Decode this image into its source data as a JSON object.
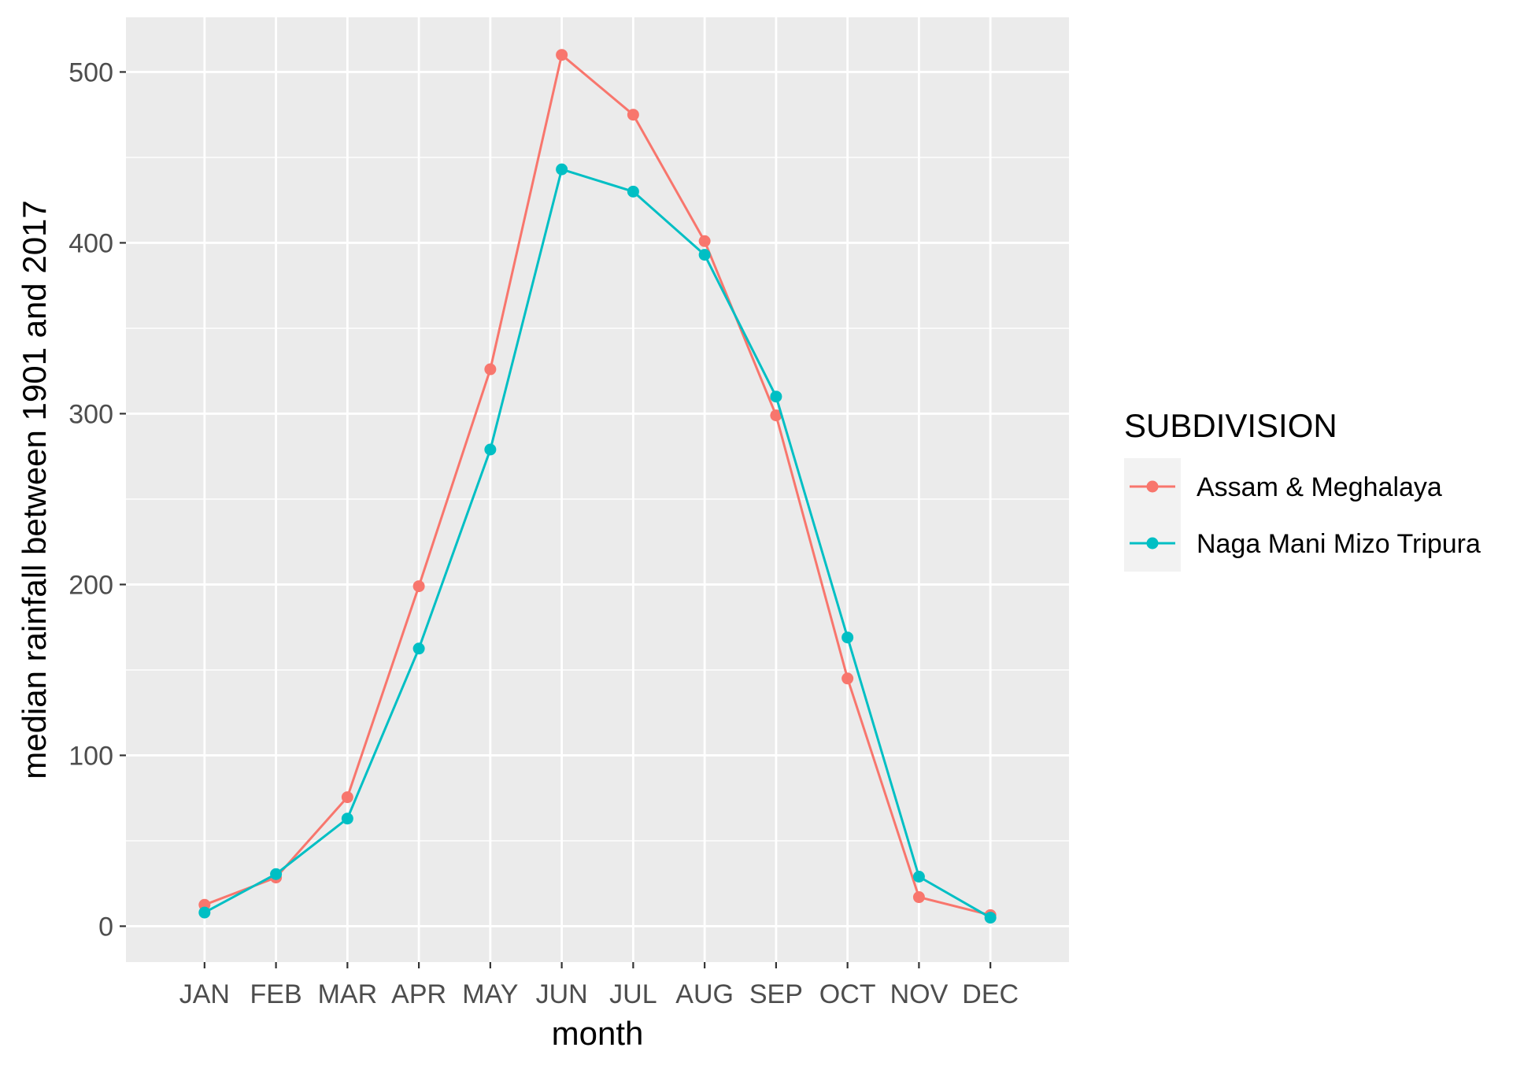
{
  "chart_data": {
    "type": "line",
    "categories": [
      "JAN",
      "FEB",
      "MAR",
      "APR",
      "MAY",
      "JUN",
      "JUL",
      "AUG",
      "SEP",
      "OCT",
      "NOV",
      "DEC"
    ],
    "series": [
      {
        "name": "Assam & Meghalaya",
        "color": "#F8766D",
        "values": [
          12.5,
          28.5,
          75.5,
          199,
          326,
          510,
          475,
          401,
          299,
          145,
          17,
          6.5
        ]
      },
      {
        "name": "Naga Mani Mizo Tripura",
        "color": "#00BFC4",
        "values": [
          8,
          30.5,
          63,
          162.5,
          279,
          443,
          430,
          393,
          310,
          169,
          29,
          5
        ]
      }
    ],
    "xlabel": "month",
    "ylabel": "median rainfall between 1901 and 2017",
    "yticks": [
      0,
      100,
      200,
      300,
      400,
      500
    ],
    "ylim": [
      -21,
      532
    ],
    "grid": true,
    "legend_title": "SUBDIVISION",
    "legend_position": "right",
    "colors": {
      "panel": "#EBEBEB",
      "grid": "#FFFFFF",
      "legend_key": "#F2F2F2"
    }
  }
}
